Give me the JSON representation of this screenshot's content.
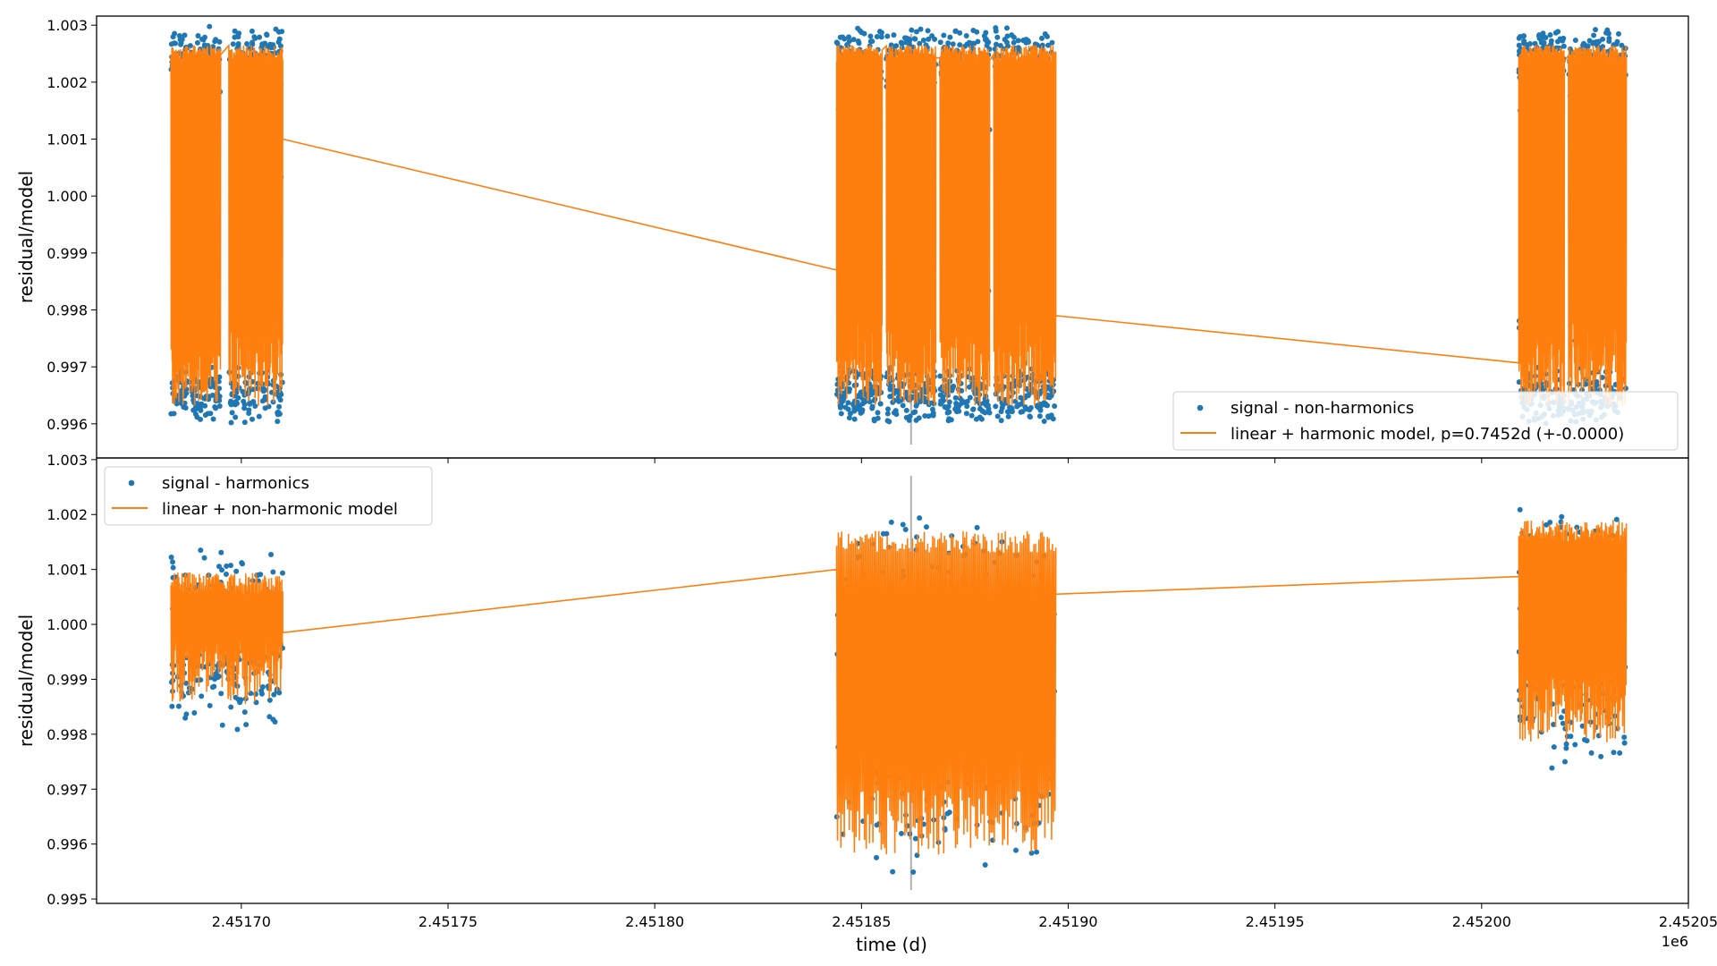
{
  "figure": {
    "xlabel": "time (d)",
    "x_offset_label": "1e6"
  },
  "chart_data": [
    {
      "type": "scatter",
      "panel": "top",
      "ylabel": "residual/model",
      "xlim": [
        2.451665,
        2.45205
      ],
      "ylim": [
        0.9954,
        1.00316
      ],
      "x_unit_scale": "1e6",
      "xticks": [
        2.4517,
        2.45175,
        2.4518,
        2.45185,
        2.4519,
        2.45195,
        2.452,
        2.45205
      ],
      "xtick_labels": [
        "2.45170",
        "2.45175",
        "2.45180",
        "2.45185",
        "2.45190",
        "2.45195",
        "2.45200",
        "2.45205"
      ],
      "yticks": [
        0.996,
        0.997,
        0.998,
        0.999,
        1.0,
        1.001,
        1.002,
        1.003
      ],
      "ytick_labels": [
        "0.996",
        "0.997",
        "0.998",
        "0.999",
        "1.000",
        "1.001",
        "1.002",
        "1.003"
      ],
      "vline_x": 2.451862,
      "legend": {
        "location": "lower right"
      },
      "series": [
        {
          "name": "signal - non-harmonics",
          "kind": "scatter",
          "color": "#1f77b4",
          "segments": [
            [
              2.451683,
              2.451695
            ],
            [
              2.451697,
              2.45171
            ],
            [
              2.451844,
              2.451855
            ],
            [
              2.451856,
              2.451868
            ],
            [
              2.451869,
              2.451881
            ],
            [
              2.451882,
              2.451897
            ],
            [
              2.452009,
              2.45202
            ],
            [
              2.452021,
              2.452035
            ]
          ],
          "center": 0.9995,
          "amplitude": 0.0032,
          "trend": [
            [
              2.45171,
              1.001
            ],
            [
              2.451844,
              0.9987
            ],
            [
              2.451897,
              0.9979
            ],
            [
              2.452009,
              0.99707
            ]
          ]
        },
        {
          "name": "linear + harmonic model, p=0.7452d (+-0.0000)",
          "kind": "line",
          "color": "#ff7f0e",
          "period_days": 0.7452,
          "range": [
            0.9963,
            1.00265
          ],
          "trend": [
            [
              2.45171,
              1.001
            ],
            [
              2.451844,
              0.9987
            ],
            [
              2.451897,
              0.9979
            ],
            [
              2.452009,
              0.99707
            ]
          ]
        }
      ]
    },
    {
      "type": "scatter",
      "panel": "bottom",
      "ylabel": "residual/model",
      "xlim": [
        2.451665,
        2.45205
      ],
      "ylim": [
        0.99492,
        1.00303
      ],
      "x_unit_scale": "1e6",
      "xticks": [
        2.4517,
        2.45175,
        2.4518,
        2.45185,
        2.4519,
        2.45195,
        2.452,
        2.45205
      ],
      "xtick_labels": [
        "2.45170",
        "2.45175",
        "2.45180",
        "2.45185",
        "2.45190",
        "2.45195",
        "2.45200",
        "2.45205"
      ],
      "yticks": [
        0.995,
        0.996,
        0.997,
        0.998,
        0.999,
        1.0,
        1.001,
        1.002,
        1.003
      ],
      "ytick_labels": [
        "0.995",
        "0.996",
        "0.997",
        "0.998",
        "0.999",
        "1.000",
        "1.001",
        "1.002",
        "1.003"
      ],
      "vline_x": 2.451862,
      "legend": {
        "location": "upper left"
      },
      "series": [
        {
          "name": "signal - harmonics",
          "kind": "scatter",
          "color": "#1f77b4",
          "blocks": [
            {
              "range": [
                2.451683,
                2.45171
              ],
              "lo": 0.9985,
              "hi": 1.00095
            },
            {
              "range": [
                2.451844,
                2.451897
              ],
              "lo": 0.9958,
              "hi": 1.0017
            },
            {
              "range": [
                2.452009,
                2.452035
              ],
              "lo": 0.99785,
              "hi": 1.0019
            }
          ]
        },
        {
          "name": "linear + non-harmonic model",
          "kind": "line",
          "color": "#ff7f0e",
          "trend": [
            [
              2.45171,
              0.99985
            ],
            [
              2.451844,
              1.001
            ],
            [
              2.451897,
              1.00055
            ],
            [
              2.452009,
              1.00087
            ]
          ]
        }
      ]
    }
  ]
}
